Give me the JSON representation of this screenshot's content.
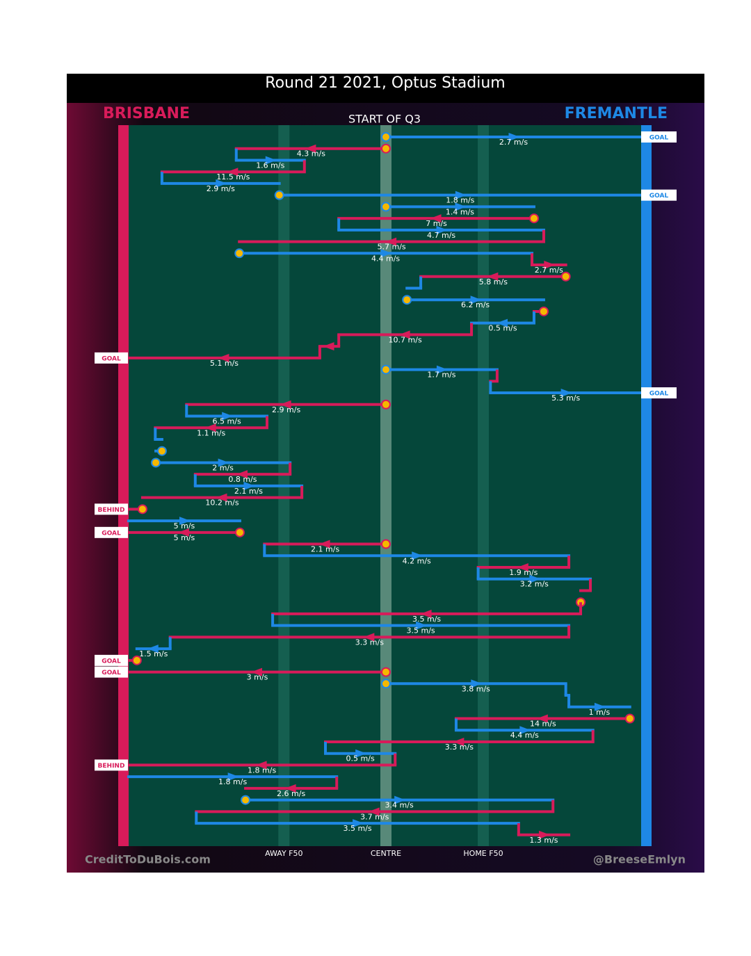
{
  "chart_data": {
    "type": "chain",
    "title": "Round 21 2021, Optus Stadium",
    "subtitle": "START OF Q3",
    "teams": [
      {
        "name": "BRISBANE",
        "color": "#d81b5a"
      },
      {
        "name": "FREMANTLE",
        "color": "#1e88e5"
      }
    ],
    "xlim": [
      0,
      100
    ],
    "zones": [
      {
        "label": "AWAY F50",
        "value": 30.3
      },
      {
        "label": "CENTRE",
        "value": 50.2
      },
      {
        "label": "HOME F50",
        "value": 69.2
      }
    ],
    "stoppage_color": "#f5b800",
    "chains": [
      {
        "team": 1,
        "from": 50.2,
        "to": 100,
        "label": "2.7 m/s",
        "stoppage": true,
        "result": "GOAL"
      },
      {
        "team": 0,
        "from": 50.2,
        "to": 21,
        "label": "4.3 m/s",
        "stoppage": true
      },
      {
        "team": 1,
        "from": 21,
        "to": 34.3,
        "label": "1.6 m/s"
      },
      {
        "team": 0,
        "from": 34.3,
        "to": 6.5,
        "label": "11.5 m/s"
      },
      {
        "team": 1,
        "from": 6.5,
        "to": 29.4,
        "label": "2.9 m/s"
      },
      {
        "team": 1,
        "from": 29.4,
        "to": 100,
        "label": "1.8 m/s",
        "stoppage": true,
        "result": "GOAL"
      },
      {
        "team": 1,
        "from": 50.2,
        "to": 79.1,
        "label": "1.4 m/s",
        "stoppage": true
      },
      {
        "team": 0,
        "from": 79.1,
        "to": 41,
        "label": "7 m/s",
        "stoppage": true
      },
      {
        "team": 1,
        "from": 41,
        "to": 81,
        "label": "4.7 m/s"
      },
      {
        "team": 0,
        "from": 81,
        "to": 21.6,
        "label": "5.7 m/s"
      },
      {
        "team": 1,
        "from": 21.6,
        "to": 78.7,
        "label": "4.4 m/s",
        "stoppage": true
      },
      {
        "team": 0,
        "from": 78.7,
        "to": 85.3,
        "label": "2.7 m/s"
      },
      {
        "team": 0,
        "from": 85.3,
        "to": 57,
        "label": "5.8 m/s",
        "stoppage": true
      },
      {
        "team": 1,
        "from": 57,
        "to": 54.3
      },
      {
        "team": 1,
        "from": 54.3,
        "to": 81,
        "label": "6.2 m/s",
        "stoppage": true
      },
      {
        "team": 0,
        "from": 81,
        "to": 79.1,
        "stoppage": true
      },
      {
        "team": 1,
        "from": 79.1,
        "to": 66.9,
        "label": "0.5 m/s"
      },
      {
        "team": 0,
        "from": 66.9,
        "to": 41,
        "label": "10.7 m/s"
      },
      {
        "team": 0,
        "from": 41,
        "to": 37.3
      },
      {
        "team": 0,
        "from": 37.3,
        "to": 0,
        "label": "5.1 m/s",
        "result": "GOAL"
      },
      {
        "team": 1,
        "from": 50.2,
        "to": 71.9,
        "label": "1.7 m/s",
        "stoppage": true
      },
      {
        "team": 0,
        "from": 71.9,
        "to": 70.6
      },
      {
        "team": 1,
        "from": 70.6,
        "to": 100,
        "label": "5.3 m/s",
        "result": "GOAL"
      },
      {
        "team": 0,
        "from": 50.2,
        "to": 11.3,
        "label": "2.9 m/s",
        "stoppage": true
      },
      {
        "team": 1,
        "from": 11.3,
        "to": 27,
        "label": "6.5 m/s"
      },
      {
        "team": 0,
        "from": 27,
        "to": 5.2,
        "label": "1.1 m/s"
      },
      {
        "team": 1,
        "from": 5.2,
        "to": 6.5
      },
      {
        "team": 1,
        "from": 6.5,
        "to": 5.3,
        "stoppage": true
      },
      {
        "team": 1,
        "from": 5.3,
        "to": 31.5,
        "label": "2 m/s",
        "stoppage": true
      },
      {
        "team": 0,
        "from": 31.5,
        "to": 13,
        "label": "0.8 m/s"
      },
      {
        "team": 1,
        "from": 13,
        "to": 33.8,
        "label": "2.1 m/s"
      },
      {
        "team": 0,
        "from": 33.8,
        "to": 2.7,
        "label": "10.2 m/s"
      },
      {
        "team": 0,
        "from": 2.7,
        "to": 0,
        "stoppage": true,
        "result": "BEHIND"
      },
      {
        "team": 1,
        "from": 0,
        "to": 21.7,
        "label": "5 m/s"
      },
      {
        "team": 0,
        "from": 21.7,
        "to": 0,
        "label": "5 m/s",
        "stoppage": true,
        "result": "GOAL"
      },
      {
        "team": 0,
        "from": 50.2,
        "to": 26.5,
        "label": "2.1 m/s",
        "stoppage": true
      },
      {
        "team": 1,
        "from": 26.5,
        "to": 85.9,
        "label": "4.2 m/s"
      },
      {
        "team": 0,
        "from": 85.9,
        "to": 68.2,
        "label": "1.9 m/s"
      },
      {
        "team": 1,
        "from": 68.2,
        "to": 90.1,
        "label": "3.2 m/s"
      },
      {
        "team": 0,
        "from": 90.1,
        "to": 88.2
      },
      {
        "team": 0,
        "from": 88.2,
        "to": 88.2,
        "stoppage": true
      },
      {
        "team": 0,
        "from": 88.2,
        "to": 28.1,
        "label": "3.5 m/s"
      },
      {
        "team": 1,
        "from": 28.1,
        "to": 85.9,
        "label": "3.5 m/s"
      },
      {
        "team": 0,
        "from": 85.9,
        "to": 8.1,
        "label": "3.3 m/s"
      },
      {
        "team": 1,
        "from": 8.1,
        "to": 1.6,
        "label": "1.5 m/s"
      },
      {
        "team": 0,
        "from": 1.6,
        "to": 0,
        "stoppage": true,
        "result": "GOAL"
      },
      {
        "team": 0,
        "from": 50.2,
        "to": 0,
        "label": "3 m/s",
        "stoppage": true,
        "result": "GOAL"
      },
      {
        "team": 1,
        "from": 50.2,
        "to": 85.3,
        "label": "3.8 m/s",
        "stoppage": true
      },
      {
        "team": 1,
        "from": 85.3,
        "to": 85.9
      },
      {
        "team": 1,
        "from": 85.9,
        "to": 97.8,
        "label": "1 m/s"
      },
      {
        "team": 0,
        "from": 97.8,
        "to": 63.9,
        "label": "14 m/s",
        "stoppage": true
      },
      {
        "team": 1,
        "from": 63.9,
        "to": 90.6,
        "label": "4.4 m/s"
      },
      {
        "team": 0,
        "from": 90.6,
        "to": 38.4,
        "label": "3.3 m/s"
      },
      {
        "team": 1,
        "from": 38.4,
        "to": 52,
        "label": "0.5 m/s"
      },
      {
        "team": 0,
        "from": 52,
        "to": 0,
        "label": "1.8 m/s",
        "result": "BEHIND"
      },
      {
        "team": 1,
        "from": 0,
        "to": 40.6,
        "label": "1.8 m/s"
      },
      {
        "team": 0,
        "from": 40.6,
        "to": 22.8,
        "label": "2.6 m/s"
      },
      {
        "team": 1,
        "from": 22.8,
        "to": 82.8,
        "label": "3.4 m/s",
        "stoppage": true
      },
      {
        "team": 0,
        "from": 82.8,
        "to": 13.2,
        "label": "3.7 m/s"
      },
      {
        "team": 1,
        "from": 13.2,
        "to": 76.1,
        "label": "3.5 m/s"
      },
      {
        "team": 0,
        "from": 76.1,
        "to": 85.9,
        "label": "1.3 m/s"
      }
    ]
  },
  "credits": {
    "left": "CreditToDuBois.com",
    "right": "@BreeseEmlyn"
  }
}
